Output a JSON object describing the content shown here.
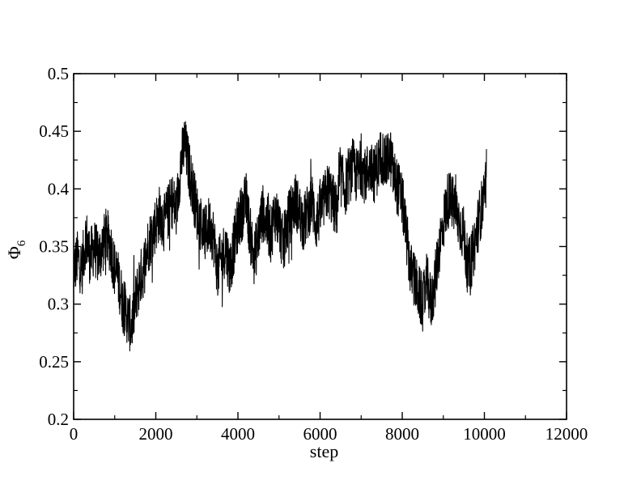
{
  "chart_data": {
    "type": "line",
    "title": "",
    "xlabel": "step",
    "ylabel": "Φ",
    "ylabel_subscript": "6",
    "xlim": [
      0,
      12000
    ],
    "ylim": [
      0.2,
      0.5
    ],
    "x_ticks": [
      0,
      2000,
      4000,
      6000,
      8000,
      10000,
      12000
    ],
    "x_tick_labels": [
      "0",
      "2000",
      "4000",
      "6000",
      "8000",
      "10000",
      "12000"
    ],
    "y_ticks": [
      0.2,
      0.25,
      0.3,
      0.35,
      0.4,
      0.45,
      0.5
    ],
    "y_tick_labels": [
      "0.2",
      "0.25",
      "0.3",
      "0.35",
      "0.4",
      "0.45",
      "0.5"
    ],
    "grid": false,
    "legend": "none",
    "line_color": "#000000",
    "series": [
      {
        "x": [
          0,
          100,
          200,
          300,
          400,
          500,
          600,
          700,
          800,
          900,
          1000,
          1100,
          1200,
          1300,
          1400,
          1500,
          1600,
          1700,
          1800,
          1900,
          2000,
          2100,
          2200,
          2300,
          2400,
          2500,
          2600,
          2700,
          2800,
          2900,
          3000,
          3100,
          3200,
          3300,
          3400,
          3500,
          3600,
          3700,
          3800,
          3900,
          4000,
          4100,
          4200,
          4300,
          4400,
          4500,
          4600,
          4700,
          4800,
          4900,
          5000,
          5100,
          5200,
          5300,
          5400,
          5500,
          5600,
          5700,
          5800,
          5900,
          6000,
          6100,
          6200,
          6300,
          6400,
          6500,
          6600,
          6700,
          6800,
          6900,
          7000,
          7100,
          7200,
          7300,
          7400,
          7500,
          7600,
          7700,
          7800,
          7900,
          8000,
          8100,
          8200,
          8300,
          8400,
          8500,
          8600,
          8700,
          8800,
          8900,
          9000,
          9100,
          9200,
          9300,
          9400,
          9500,
          9600,
          9700,
          9800,
          9900,
          10000,
          10050
        ],
        "y": [
          0.33,
          0.34,
          0.33,
          0.36,
          0.34,
          0.35,
          0.34,
          0.35,
          0.36,
          0.35,
          0.33,
          0.32,
          0.3,
          0.29,
          0.28,
          0.3,
          0.32,
          0.33,
          0.35,
          0.36,
          0.37,
          0.38,
          0.37,
          0.38,
          0.39,
          0.38,
          0.42,
          0.44,
          0.42,
          0.4,
          0.38,
          0.37,
          0.36,
          0.37,
          0.36,
          0.33,
          0.34,
          0.35,
          0.33,
          0.35,
          0.37,
          0.38,
          0.39,
          0.36,
          0.34,
          0.36,
          0.38,
          0.37,
          0.36,
          0.38,
          0.37,
          0.35,
          0.37,
          0.38,
          0.39,
          0.38,
          0.37,
          0.38,
          0.39,
          0.37,
          0.38,
          0.39,
          0.4,
          0.39,
          0.38,
          0.41,
          0.4,
          0.41,
          0.42,
          0.41,
          0.42,
          0.41,
          0.42,
          0.41,
          0.42,
          0.43,
          0.42,
          0.43,
          0.41,
          0.4,
          0.39,
          0.36,
          0.33,
          0.32,
          0.31,
          0.3,
          0.32,
          0.3,
          0.32,
          0.35,
          0.37,
          0.39,
          0.39,
          0.38,
          0.37,
          0.36,
          0.33,
          0.34,
          0.36,
          0.38,
          0.39,
          0.41
        ]
      }
    ]
  }
}
